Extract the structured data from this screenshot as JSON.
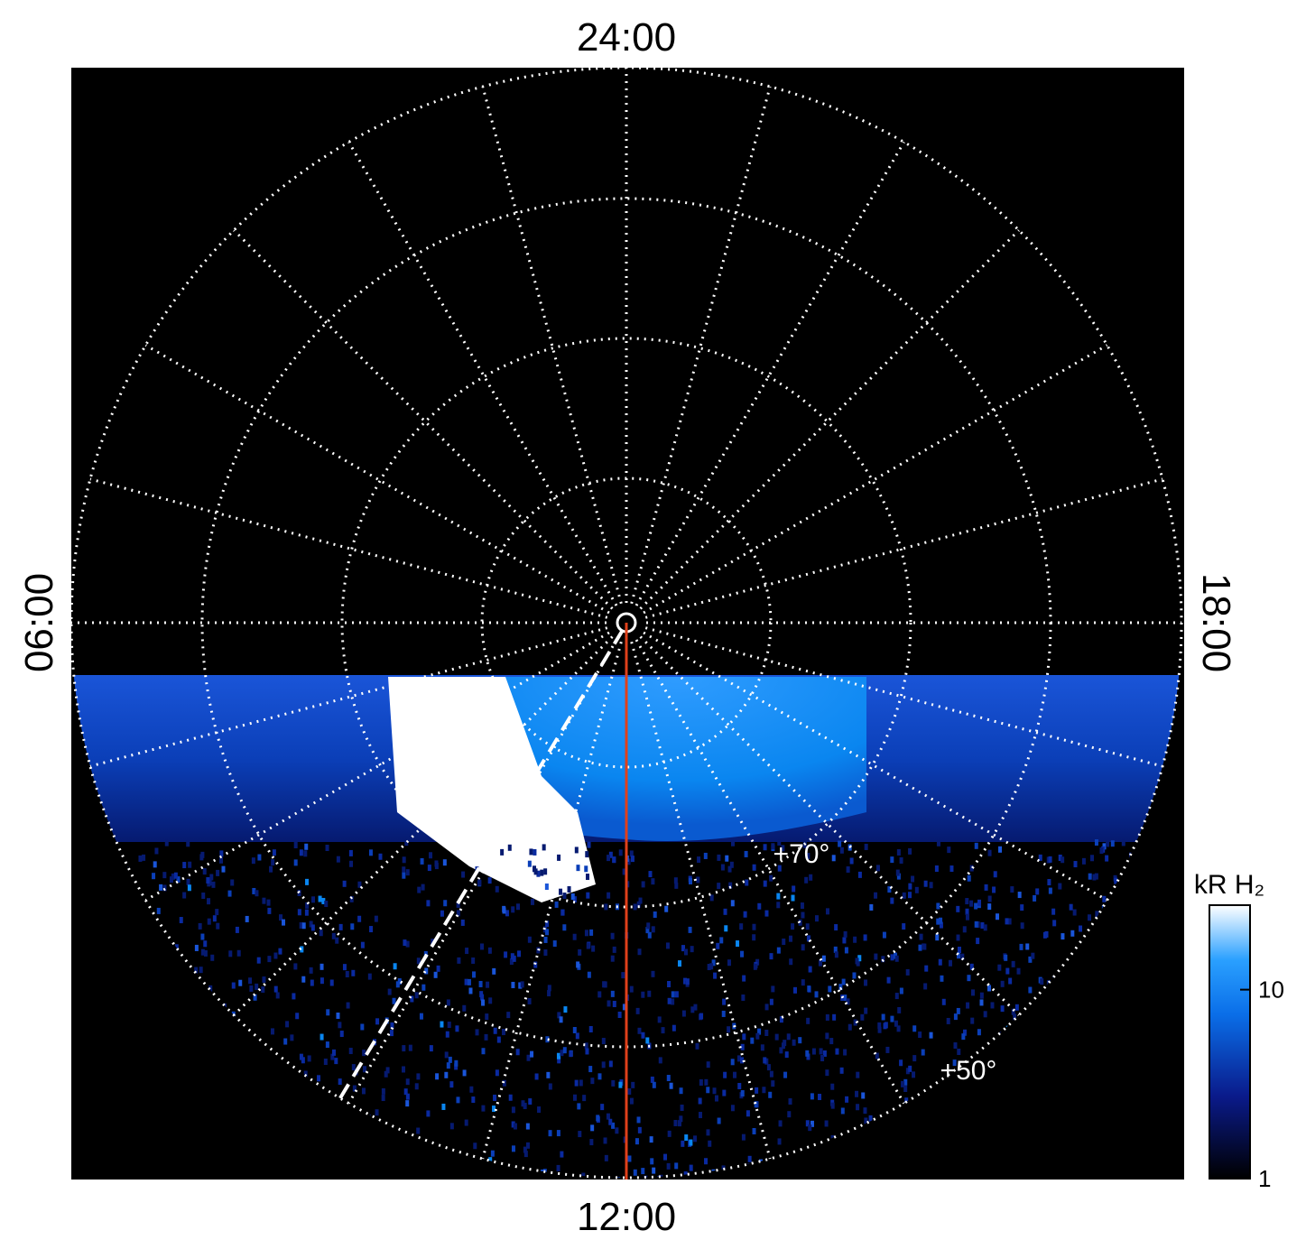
{
  "labels": {
    "top": "24:00",
    "bottom": "12:00",
    "left": "06:00",
    "right": "18:00"
  },
  "latitude_labels": [
    "+70°",
    "+50°"
  ],
  "colorbar": {
    "title": "kR H₂",
    "ticks": [
      1,
      10
    ],
    "lim": [
      1,
      28
    ],
    "log": true
  }
}
